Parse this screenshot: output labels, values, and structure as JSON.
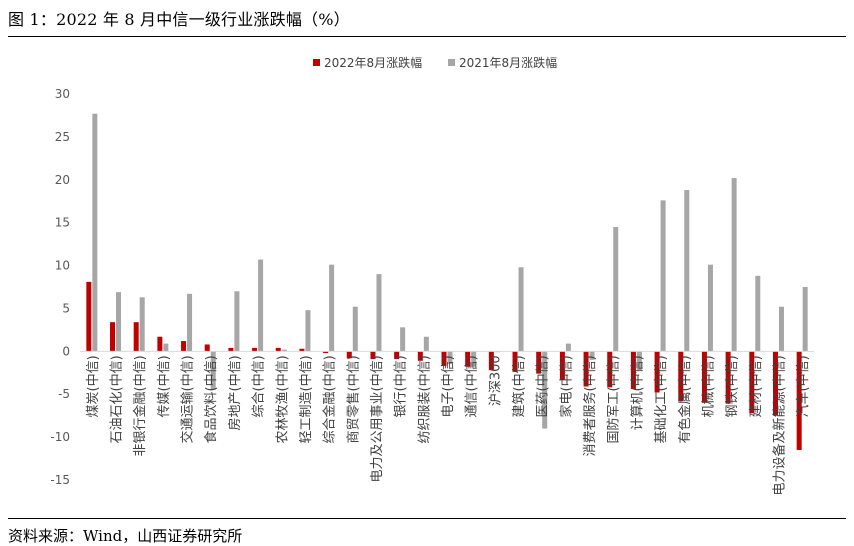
{
  "header": {
    "title": "图 1：2022 年 8 月中信一级行业涨跌幅（%）"
  },
  "footer": {
    "source": "资料来源：Wind，山西证券研究所"
  },
  "chart_data": {
    "type": "bar",
    "title": "",
    "xlabel": "",
    "ylabel": "",
    "ylim": [
      -15,
      30
    ],
    "yticks": [
      -15,
      -10,
      -5,
      0,
      5,
      10,
      15,
      20,
      25,
      30
    ],
    "grid": false,
    "legend_position": "top-center",
    "categories": [
      "煤炭(中信)",
      "石油石化(中信)",
      "非银行金融(中信)",
      "传媒(中信)",
      "交通运输(中信)",
      "食品饮料(中信)",
      "房地产(中信)",
      "综合(中信)",
      "农林牧渔(中信)",
      "轻工制造(中信)",
      "综合金融(中信)",
      "商贸零售(中信)",
      "电力及公用事业(中信)",
      "银行(中信)",
      "纺织服装(中信)",
      "电子(中信)",
      "通信(中信)",
      "沪深300",
      "建筑(中信)",
      "医药(中信)",
      "家电(中信)",
      "消费者服务(中信)",
      "国防军工(中信)",
      "计算机(中信)",
      "基础化工(中信)",
      "有色金属(中信)",
      "机械(中信)",
      "钢铁(中信)",
      "建材(中信)",
      "电力设备及新能源(中信)",
      "汽车(中信)"
    ],
    "series": [
      {
        "name": "2022年8月涨跌幅",
        "color": "#C00000",
        "values": [
          8.1,
          3.4,
          3.4,
          1.7,
          1.2,
          0.8,
          0.4,
          0.4,
          0.4,
          0.3,
          -0.2,
          -0.8,
          -0.9,
          -0.9,
          -1.1,
          -1.7,
          -1.8,
          -2.2,
          -2.4,
          -2.6,
          -3.3,
          -4.1,
          -4.2,
          -4.4,
          -4.8,
          -5.8,
          -6.0,
          -6.1,
          -7.2,
          -7.5,
          -11.5
        ]
      },
      {
        "name": "2021年8月涨跌幅",
        "color": "#A6A6A6",
        "values": [
          27.7,
          6.9,
          6.3,
          0.9,
          6.7,
          -4.5,
          7.0,
          10.7,
          0.2,
          4.8,
          10.1,
          5.2,
          9.0,
          2.8,
          1.7,
          -1.5,
          -1.8,
          -0.1,
          9.8,
          -9.0,
          0.9,
          -1.0,
          14.5,
          -2.2,
          17.6,
          18.8,
          10.1,
          20.2,
          8.8,
          5.2,
          7.5
        ]
      }
    ]
  }
}
